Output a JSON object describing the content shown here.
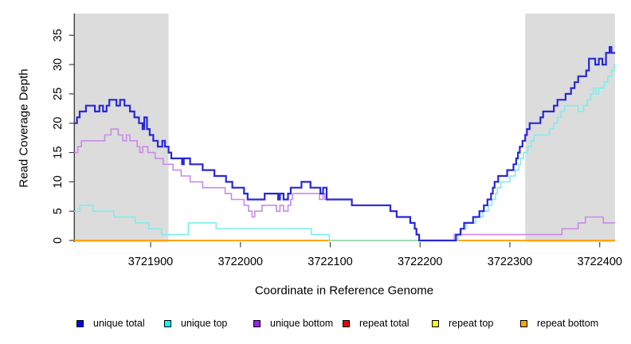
{
  "y_axis": {
    "label": "Read Coverage Depth",
    "ticks": [
      0,
      5,
      10,
      15,
      20,
      25,
      30,
      35
    ]
  },
  "x_axis": {
    "label": "Coordinate in Reference Genome",
    "ticks": [
      3721900,
      3722000,
      3722100,
      3722200,
      3722300,
      3722400
    ]
  },
  "chart_data": {
    "type": "step-line",
    "x_range": [
      3721815,
      3722417
    ],
    "y_range": [
      0,
      38.7
    ],
    "grid": "off",
    "shaded_regions": [
      {
        "x_start": 3721815,
        "x_end": 3721920,
        "color": "#dcdcdc"
      },
      {
        "x_start": 3722317,
        "x_end": 3722417,
        "color": "#dcdcdc"
      }
    ],
    "draw_order": [
      "repeat total",
      "repeat top",
      "repeat bottom",
      "unique bottom",
      "unique top",
      "unique total"
    ],
    "series": [
      {
        "name": "unique total",
        "line_color": "#2727d8",
        "legend_color": "#0000ee",
        "line_width": 2.2,
        "points": [
          [
            3721815,
            20
          ],
          [
            3721818,
            21
          ],
          [
            3721821,
            22
          ],
          [
            3721828,
            23
          ],
          [
            3721838,
            22
          ],
          [
            3721843,
            23
          ],
          [
            3721847,
            22
          ],
          [
            3721851,
            23
          ],
          [
            3721854,
            24
          ],
          [
            3721862,
            23
          ],
          [
            3721866,
            24
          ],
          [
            3721871,
            23
          ],
          [
            3721877,
            22
          ],
          [
            3721882,
            21
          ],
          [
            3721887,
            20
          ],
          [
            3721891,
            19
          ],
          [
            3721893,
            21
          ],
          [
            3721896,
            19
          ],
          [
            3721899,
            18
          ],
          [
            3721903,
            17
          ],
          [
            3721908,
            16
          ],
          [
            3721913,
            17
          ],
          [
            3721916,
            16
          ],
          [
            3721920,
            15
          ],
          [
            3721923,
            14
          ],
          [
            3721935,
            13
          ],
          [
            3721937,
            14
          ],
          [
            3721944,
            13
          ],
          [
            3721958,
            12
          ],
          [
            3721971,
            11
          ],
          [
            3721984,
            10
          ],
          [
            3721991,
            9
          ],
          [
            3722004,
            8
          ],
          [
            3722008,
            7
          ],
          [
            3722027,
            8
          ],
          [
            3722042,
            7
          ],
          [
            3722044,
            8
          ],
          [
            3722048,
            7
          ],
          [
            3722053,
            8
          ],
          [
            3722056,
            9
          ],
          [
            3722068,
            10
          ],
          [
            3722078,
            9
          ],
          [
            3722089,
            8
          ],
          [
            3722092,
            9
          ],
          [
            3722096,
            7
          ],
          [
            3722124,
            6
          ],
          [
            3722167,
            5
          ],
          [
            3722174,
            4
          ],
          [
            3722189,
            3
          ],
          [
            3722194,
            2
          ],
          [
            3722196,
            1
          ],
          [
            3722199,
            0
          ],
          [
            3722240,
            1
          ],
          [
            3722245,
            2
          ],
          [
            3722249,
            3
          ],
          [
            3722259,
            4
          ],
          [
            3722266,
            5
          ],
          [
            3722271,
            6
          ],
          [
            3722275,
            7
          ],
          [
            3722279,
            8
          ],
          [
            3722281,
            9
          ],
          [
            3722283,
            10
          ],
          [
            3722287,
            11
          ],
          [
            3722297,
            12
          ],
          [
            3722304,
            13
          ],
          [
            3722307,
            14
          ],
          [
            3722309,
            15
          ],
          [
            3722311,
            16
          ],
          [
            3722314,
            17
          ],
          [
            3722317,
            18
          ],
          [
            3722319,
            19
          ],
          [
            3722322,
            20
          ],
          [
            3722334,
            21
          ],
          [
            3722337,
            22
          ],
          [
            3722349,
            23
          ],
          [
            3722353,
            24
          ],
          [
            3722362,
            25
          ],
          [
            3722368,
            26
          ],
          [
            3722372,
            27
          ],
          [
            3722376,
            28
          ],
          [
            3722385,
            29
          ],
          [
            3722388,
            31
          ],
          [
            3722395,
            30
          ],
          [
            3722399,
            31
          ],
          [
            3722403,
            30
          ],
          [
            3722407,
            32
          ],
          [
            3722411,
            33
          ],
          [
            3722413,
            32
          ]
        ]
      },
      {
        "name": "unique top",
        "line_color": "#7deeee",
        "legend_color": "#00ffff",
        "line_width": 1.6,
        "points": [
          [
            3721815,
            5
          ],
          [
            3721821,
            6
          ],
          [
            3721836,
            5
          ],
          [
            3721859,
            4
          ],
          [
            3721883,
            3
          ],
          [
            3721898,
            2
          ],
          [
            3721912,
            1
          ],
          [
            3721942,
            3
          ],
          [
            3721973,
            2
          ],
          [
            3722079,
            1
          ],
          [
            3722099,
            0
          ],
          [
            3722242,
            1
          ],
          [
            3722246,
            2
          ],
          [
            3722251,
            3
          ],
          [
            3722262,
            4
          ],
          [
            3722270,
            5
          ],
          [
            3722276,
            6
          ],
          [
            3722280,
            7
          ],
          [
            3722284,
            8
          ],
          [
            3722286,
            9
          ],
          [
            3722290,
            10
          ],
          [
            3722300,
            11
          ],
          [
            3722306,
            12
          ],
          [
            3722310,
            13
          ],
          [
            3722312,
            14
          ],
          [
            3722315,
            15
          ],
          [
            3722320,
            16
          ],
          [
            3722324,
            17
          ],
          [
            3722327,
            18
          ],
          [
            3722344,
            19
          ],
          [
            3722349,
            20
          ],
          [
            3722353,
            21
          ],
          [
            3722357,
            22
          ],
          [
            3722361,
            23
          ],
          [
            3722376,
            22
          ],
          [
            3722382,
            23
          ],
          [
            3722386,
            24
          ],
          [
            3722390,
            25
          ],
          [
            3722393,
            26
          ],
          [
            3722396,
            25
          ],
          [
            3722399,
            26
          ],
          [
            3722405,
            27
          ],
          [
            3722409,
            28
          ],
          [
            3722413,
            29
          ],
          [
            3722416,
            30
          ]
        ]
      },
      {
        "name": "unique bottom",
        "line_color": "#c98ae8",
        "legend_color": "#a020f0",
        "line_width": 1.6,
        "points": [
          [
            3721815,
            15
          ],
          [
            3721819,
            16
          ],
          [
            3721823,
            17
          ],
          [
            3721849,
            18
          ],
          [
            3721856,
            19
          ],
          [
            3721864,
            18
          ],
          [
            3721869,
            17
          ],
          [
            3721873,
            18
          ],
          [
            3721877,
            17
          ],
          [
            3721885,
            16
          ],
          [
            3721888,
            15
          ],
          [
            3721891,
            16
          ],
          [
            3721897,
            15
          ],
          [
            3721905,
            14
          ],
          [
            3721914,
            13
          ],
          [
            3721925,
            12
          ],
          [
            3721934,
            11
          ],
          [
            3721944,
            10
          ],
          [
            3721958,
            9
          ],
          [
            3721983,
            8
          ],
          [
            3721990,
            7
          ],
          [
            3722004,
            6
          ],
          [
            3722009,
            5
          ],
          [
            3722013,
            4
          ],
          [
            3722016,
            5
          ],
          [
            3722024,
            6
          ],
          [
            3722040,
            5
          ],
          [
            3722044,
            6
          ],
          [
            3722048,
            5
          ],
          [
            3722053,
            6
          ],
          [
            3722056,
            7
          ],
          [
            3722058,
            8
          ],
          [
            3722088,
            7
          ],
          [
            3722092,
            8
          ],
          [
            3722094,
            7
          ],
          [
            3722124,
            6
          ],
          [
            3722167,
            5
          ],
          [
            3722174,
            4
          ],
          [
            3722189,
            3
          ],
          [
            3722194,
            2
          ],
          [
            3722196,
            1
          ],
          [
            3722199,
            0
          ],
          [
            3722238,
            1
          ],
          [
            3722358,
            2
          ],
          [
            3722376,
            3
          ],
          [
            3722384,
            4
          ],
          [
            3722404,
            3
          ]
        ]
      },
      {
        "name": "repeat total",
        "line_color": "#e00000",
        "legend_color": "#ee0000",
        "line_width": 1.5,
        "points": [
          [
            3721815,
            0
          ]
        ]
      },
      {
        "name": "repeat top",
        "line_color": "#ffff00",
        "legend_color": "#ffff00",
        "line_width": 1.5,
        "points": [
          [
            3721815,
            0
          ]
        ]
      },
      {
        "name": "repeat bottom",
        "line_color": "#ffa500",
        "legend_color": "#ffa500",
        "line_width": 2,
        "points": [
          [
            3721815,
            0
          ]
        ]
      }
    ]
  },
  "legend": {
    "items": [
      {
        "label": "unique total",
        "color": "#0000ee"
      },
      {
        "label": "unique top",
        "color": "#00ffff"
      },
      {
        "label": "unique bottom",
        "color": "#a020f0"
      },
      {
        "label": "repeat total",
        "color": "#ee0000"
      },
      {
        "label": "repeat top",
        "color": "#ffff00"
      },
      {
        "label": "repeat bottom",
        "color": "#ffa500"
      }
    ]
  }
}
